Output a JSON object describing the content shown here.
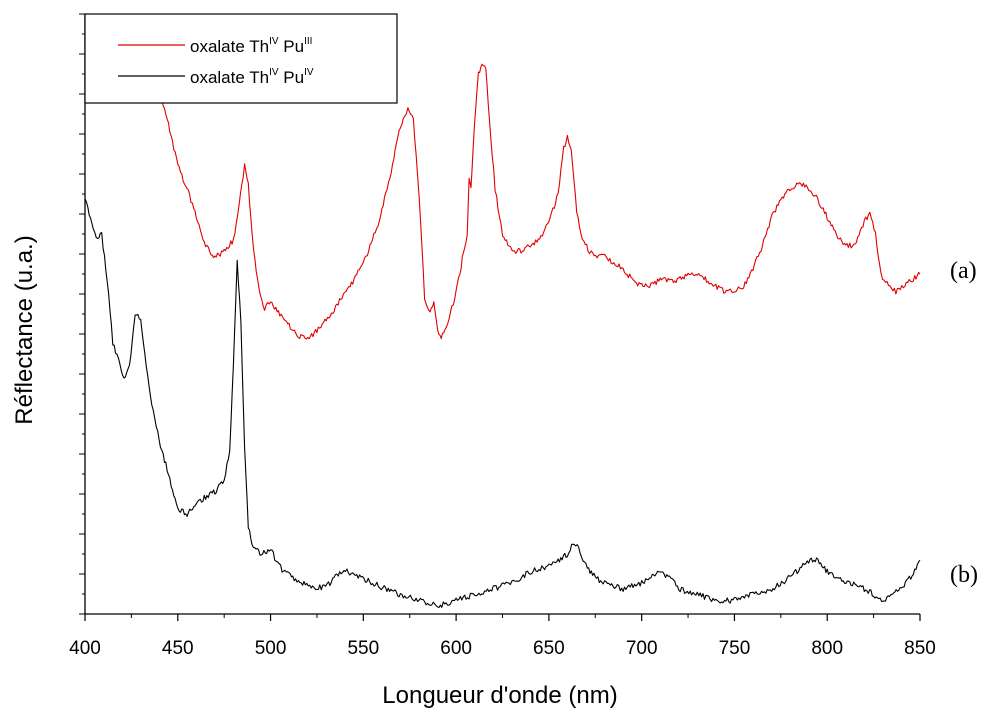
{
  "chart_data": {
    "type": "line",
    "xlabel": "Longueur d'onde (nm)",
    "ylabel": "Réflectance (u.a.)",
    "xlim": [
      400,
      850
    ],
    "ylim": [
      0,
      100
    ],
    "x_ticks": [
      400,
      450,
      500,
      550,
      600,
      650,
      700,
      750,
      800,
      850
    ],
    "y_tick_labels_shown": false,
    "grid": false,
    "legend_position": "top-left",
    "series": [
      {
        "name": "oxalate Th(IV) Pu(III)",
        "legend_main": "oxalate Th",
        "legend_sup1": "IV",
        "legend_mid": " Pu",
        "legend_sup2": "III",
        "color": "#e00000",
        "annotation": "(a)",
        "x": [
          436,
          440,
          445,
          450,
          455,
          460,
          465,
          470,
          475,
          480,
          483,
          486,
          488,
          490,
          493,
          496,
          500,
          505,
          510,
          515,
          520,
          525,
          530,
          535,
          540,
          545,
          550,
          555,
          560,
          565,
          570,
          574,
          577,
          580,
          583,
          586,
          588,
          590,
          592,
          594,
          597,
          600,
          602,
          604,
          606,
          607,
          608,
          610,
          612,
          614,
          616,
          618,
          621,
          625,
          630,
          635,
          640,
          645,
          650,
          655,
          658,
          660,
          662,
          665,
          668,
          672,
          676,
          680,
          685,
          690,
          695,
          700,
          705,
          710,
          715,
          720,
          725,
          730,
          735,
          740,
          745,
          750,
          755,
          760,
          765,
          770,
          775,
          780,
          785,
          790,
          795,
          800,
          805,
          810,
          815,
          820,
          823,
          826,
          829,
          833,
          837,
          841,
          845,
          850
        ],
        "y": [
          96,
          90,
          84,
          77,
          73,
          68,
          63,
          61,
          62,
          64,
          70,
          77,
          74,
          65,
          57,
          52,
          53,
          51,
          49,
          47,
          47,
          48,
          50,
          52,
          55,
          57,
          60,
          64,
          69,
          76,
          84,
          87,
          85,
          72,
          54,
          51,
          53,
          48,
          47,
          48,
          51,
          55,
          58,
          62,
          65,
          75,
          73,
          85,
          93,
          95,
          94,
          85,
          73,
          65,
          62,
          62,
          63,
          64,
          67,
          72,
          80,
          82,
          80,
          69,
          64,
          62,
          61,
          61,
          60,
          59,
          57,
          56,
          56,
          57,
          57,
          57,
          58,
          58,
          57,
          56,
          55,
          55,
          56,
          59,
          63,
          68,
          71,
          73,
          74,
          73,
          71,
          68,
          65,
          63,
          63,
          67,
          69,
          65,
          58,
          56,
          55,
          56,
          57,
          58
        ]
      },
      {
        "name": "oxalate Th(IV) Pu(IV)",
        "legend_main": "oxalate Th",
        "legend_sup1": "IV",
        "legend_mid": " Pu",
        "legend_sup2": "IV",
        "color": "#000000",
        "annotation": "(b)",
        "x": [
          400,
          403,
          406,
          409,
          412,
          415,
          418,
          421,
          424,
          427,
          430,
          433,
          436,
          440,
          445,
          450,
          455,
          460,
          465,
          470,
          475,
          478,
          480,
          482,
          484,
          486,
          488,
          490,
          495,
          500,
          503,
          507,
          512,
          518,
          525,
          532,
          538,
          542,
          548,
          555,
          562,
          570,
          580,
          590,
          600,
          610,
          620,
          630,
          640,
          650,
          655,
          660,
          663,
          666,
          670,
          675,
          680,
          690,
          700,
          705,
          710,
          715,
          720,
          730,
          740,
          750,
          760,
          770,
          780,
          790,
          795,
          800,
          805,
          810,
          815,
          820,
          825,
          830,
          835,
          840,
          845,
          850
        ],
        "y": [
          71,
          68,
          64,
          65,
          57,
          46,
          43,
          40,
          42,
          51,
          50,
          42,
          35,
          29,
          23,
          17,
          16,
          18,
          19,
          20,
          22,
          27,
          42,
          60,
          50,
          28,
          14,
          11,
          9,
          10,
          8,
          6,
          5,
          4,
          3,
          4,
          6,
          6,
          5,
          4,
          3,
          2,
          1,
          0,
          1,
          2,
          3,
          4,
          6,
          7,
          8,
          9,
          11,
          10,
          7,
          5,
          4,
          3,
          4,
          5,
          6,
          5,
          3,
          2,
          1,
          1,
          2,
          3,
          5,
          8,
          8,
          6,
          5,
          4,
          4,
          3,
          2,
          1,
          2,
          3,
          5,
          8
        ]
      }
    ],
    "annotations": [
      "(a)",
      "(b)"
    ]
  }
}
